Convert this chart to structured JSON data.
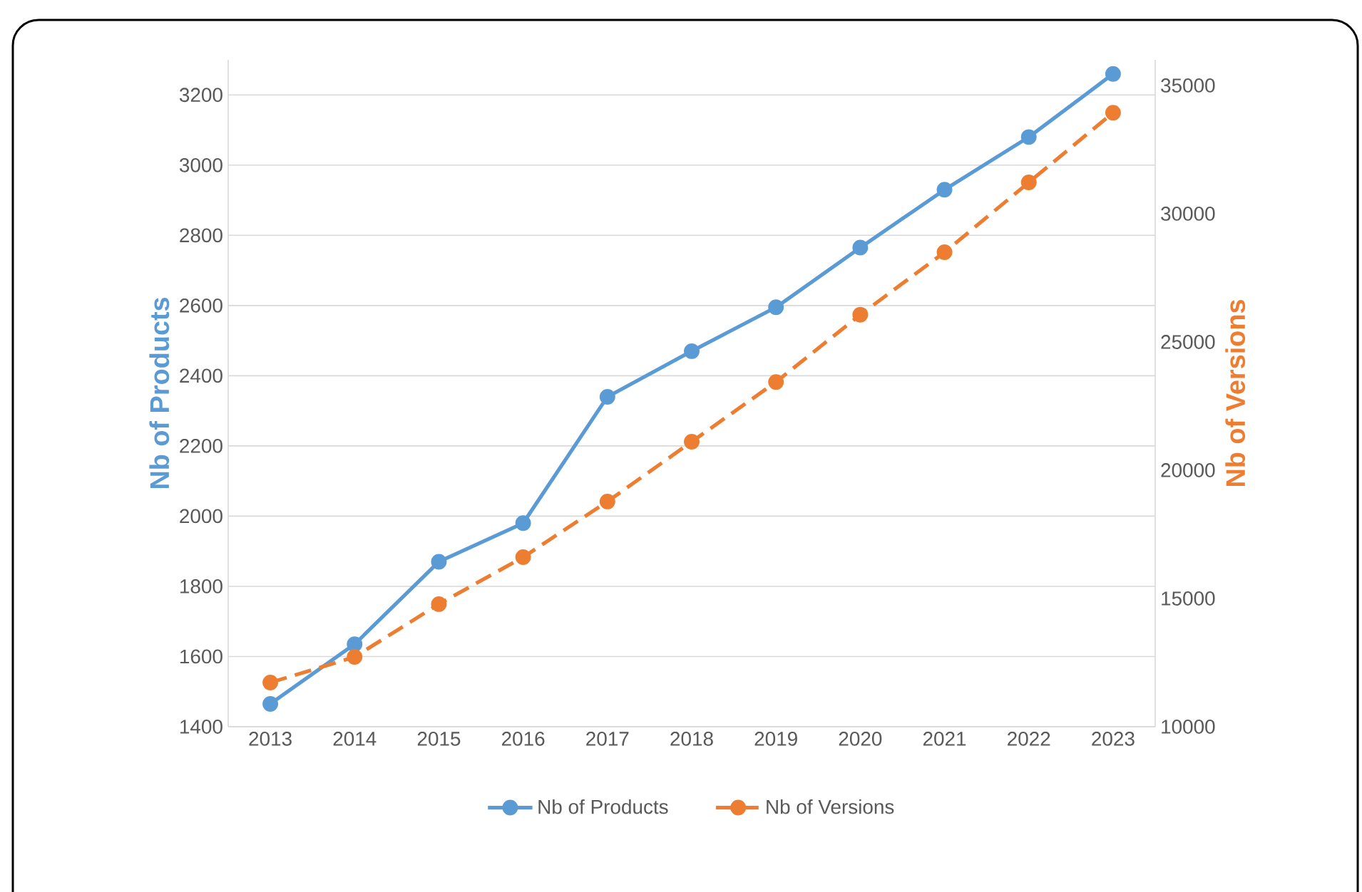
{
  "chart_data": {
    "type": "line",
    "categories": [
      "2013",
      "2014",
      "2015",
      "2016",
      "2017",
      "2018",
      "2019",
      "2020",
      "2021",
      "2022",
      "2023"
    ],
    "series": [
      {
        "name": "Nb of Products",
        "color": "#5b9bd5",
        "line_style": "solid",
        "values": [
          1465,
          1635,
          1870,
          1980,
          2340,
          2470,
          2595,
          2765,
          2930,
          3080,
          3260
        ]
      },
      {
        "name": "Nb of Versions",
        "color": "#ed7d31",
        "line_style": "dashed",
        "axis": "y2",
        "values": [
          11720,
          12720,
          14780,
          16610,
          18780,
          21110,
          23440,
          26060,
          28500,
          31220,
          33940
        ]
      }
    ],
    "ylabel": "Nb of Products",
    "y2label": "Nb of Versions",
    "ylim": [
      1400,
      3300
    ],
    "yticks": [
      1400,
      1600,
      1800,
      2000,
      2200,
      2400,
      2600,
      2800,
      3000,
      3200
    ],
    "y2lim": [
      10000,
      36000
    ],
    "y2ticks": [
      10000,
      15000,
      20000,
      25000,
      30000,
      35000
    ],
    "grid": "y",
    "legend": "bottom",
    "marker": "circle"
  }
}
